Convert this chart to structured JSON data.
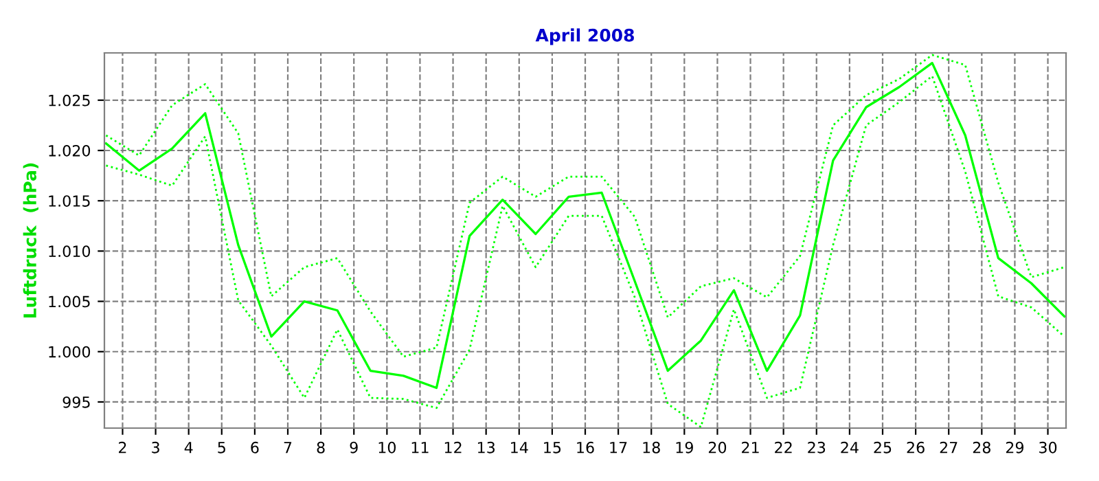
{
  "chart_data": {
    "type": "line",
    "title": "April 2008",
    "ylabel": "Luftdruck  (hPa)",
    "x": [
      1.5,
      2.5,
      3.5,
      4.5,
      5.5,
      6.5,
      7.5,
      8.5,
      9.5,
      10.5,
      11.5,
      12.5,
      13.5,
      14.5,
      15.5,
      16.5,
      17.5,
      18.5,
      19.5,
      20.5,
      21.5,
      22.5,
      23.5,
      24.5,
      25.5,
      26.5,
      27.5,
      28.5,
      29.5,
      30.5
    ],
    "series": [
      {
        "color": "#00ff00",
        "line_style": "dotted",
        "values": [
          1021.5,
          1019.5,
          1024.5,
          1026.6,
          1021.7,
          1005.5,
          1008.4,
          1009.3,
          1004.0,
          999.5,
          1000.4,
          1014.8,
          1017.4,
          1015.4,
          1017.4,
          1017.4,
          1013.4,
          1003.4,
          1006.5,
          1007.3,
          1005.4,
          1009.5,
          1022.5,
          1025.5,
          1027.1,
          1029.5,
          1028.5,
          1016.8,
          1007.4,
          1008.4
        ]
      },
      {
        "color": "#00ff00",
        "line_style": "solid",
        "values": [
          1020.7,
          1018.0,
          1020.2,
          1023.7,
          1010.6,
          1001.5,
          1005.0,
          1004.1,
          998.1,
          997.6,
          996.4,
          1011.5,
          1015.1,
          1011.7,
          1015.4,
          1015.8,
          1007.0,
          998.1,
          1001.1,
          1006.1,
          998.1,
          1003.6,
          1019.0,
          1024.3,
          1026.3,
          1028.7,
          1021.5,
          1009.3,
          1006.8,
          1003.5
        ]
      },
      {
        "color": "#00ff00",
        "line_style": "dotted",
        "values": [
          1018.5,
          1017.6,
          1016.5,
          1021.4,
          1005.1,
          1000.6,
          995.4,
          1002.2,
          995.4,
          995.3,
          994.4,
          1000.2,
          1014.5,
          1008.4,
          1013.5,
          1013.5,
          1005.4,
          994.8,
          992.5,
          1004.2,
          995.4,
          996.4,
          1010.6,
          1022.5,
          1024.8,
          1027.4,
          1017.9,
          1005.5,
          1004.4,
          1001.5
        ]
      }
    ],
    "xlim": [
      1.45,
      30.55
    ],
    "xticks": [
      2,
      3,
      4,
      5,
      6,
      7,
      8,
      9,
      10,
      11,
      12,
      13,
      14,
      15,
      16,
      17,
      18,
      19,
      20,
      21,
      22,
      23,
      24,
      25,
      26,
      27,
      28,
      29,
      30
    ],
    "ylim": [
      992.4,
      1029.7
    ],
    "yticks": [
      {
        "value": 995,
        "label": "995"
      },
      {
        "value": 1000,
        "label": "1.000"
      },
      {
        "value": 1005,
        "label": "1.005"
      },
      {
        "value": 1010,
        "label": "1.010"
      },
      {
        "value": 1015,
        "label": "1.015"
      },
      {
        "value": 1020,
        "label": "1.020"
      },
      {
        "value": 1025,
        "label": "1.025"
      }
    ],
    "grid": true
  }
}
